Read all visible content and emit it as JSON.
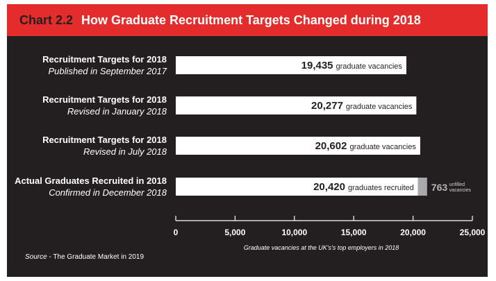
{
  "header": {
    "chart_label": "Chart 2.2",
    "title": "How Graduate Recruitment Targets Changed during 2018"
  },
  "source": {
    "label": "Source",
    "text": " - The Graduate Market in 2019"
  },
  "colors": {
    "header_bg": "#e42c2c",
    "panel_bg": "#231f20",
    "bar": "#ffffff",
    "unfilled": "#a7a9ac"
  },
  "chart_data": {
    "type": "bar",
    "orientation": "horizontal",
    "title": "How Graduate Recruitment Targets Changed during 2018",
    "xlabel": "Graduate vacancies at the UK's's top employers in 2018",
    "xlim": [
      0,
      25000
    ],
    "xticks": [
      0,
      5000,
      10000,
      15000,
      20000,
      25000
    ],
    "xtick_labels": [
      "0",
      "5,000",
      "10,000",
      "15,000",
      "20,000",
      "25,000"
    ],
    "categories": [
      {
        "title": "Recruitment Targets for 2018",
        "subtitle": "Published in September 2017"
      },
      {
        "title": "Recruitment Targets for 2018",
        "subtitle": "Revised in January 2018"
      },
      {
        "title": "Recruitment Targets for 2018",
        "subtitle": "Revised in July 2018"
      },
      {
        "title": "Actual Graduates Recruited in 2018",
        "subtitle": "Confirmed in December 2018"
      }
    ],
    "values": [
      19435,
      20277,
      20602,
      20420
    ],
    "value_labels": [
      "19,435",
      "20,277",
      "20,602",
      "20,420"
    ],
    "unit_labels": [
      "graduate vacancies",
      "graduate vacancies",
      "graduate vacancies",
      "graduates recruited"
    ],
    "unfilled": {
      "value": 763,
      "value_label": "763",
      "label_line1": "unfilled",
      "label_line2": "vacancies"
    }
  }
}
